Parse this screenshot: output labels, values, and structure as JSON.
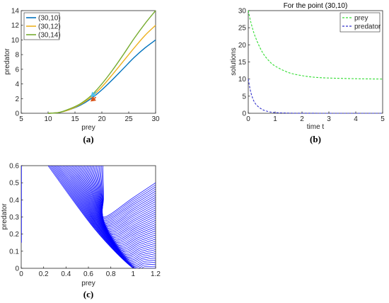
{
  "chart_data": [
    {
      "panel": "a",
      "caption": "(a)",
      "type": "line",
      "xlabel": "prey",
      "ylabel": "predator",
      "xlim": [
        5,
        30
      ],
      "ylim": [
        0,
        14
      ],
      "xticks": [
        "5",
        "10",
        "15",
        "20",
        "25",
        "30"
      ],
      "yticks": [
        "0",
        "2",
        "4",
        "6",
        "8",
        "10",
        "12",
        "14"
      ],
      "legend_placement": "top-left",
      "series": [
        {
          "name": "(30,10)",
          "color": "#0072BD",
          "x": [
            10,
            12,
            14,
            16,
            18,
            20,
            22,
            24,
            26,
            28,
            30
          ],
          "y": [
            0.0,
            0.1,
            0.5,
            1.1,
            2.0,
            3.2,
            4.6,
            6.1,
            7.6,
            8.9,
            10.0
          ]
        },
        {
          "name": "(30,12)",
          "color": "#EDB120",
          "x": [
            10,
            12,
            14,
            16,
            18,
            20,
            22,
            24,
            26,
            28,
            30
          ],
          "y": [
            0.0,
            0.1,
            0.5,
            1.2,
            2.2,
            3.6,
            5.3,
            7.1,
            8.9,
            10.6,
            12.0
          ]
        },
        {
          "name": "(30,14)",
          "color": "#77AC30",
          "x": [
            10,
            12,
            14,
            16,
            18,
            20,
            22,
            24,
            26,
            28,
            30
          ],
          "y": [
            0.0,
            0.1,
            0.6,
            1.3,
            2.4,
            4.0,
            5.9,
            8.0,
            10.2,
            12.2,
            14.0
          ]
        }
      ],
      "arrows": [
        {
          "x0": 17.9,
          "y0": 1.6,
          "x1": 18.9,
          "y1": 2.2,
          "color": "#D95319"
        },
        {
          "x0": 17.9,
          "y0": 2.2,
          "x1": 18.9,
          "y1": 2.9,
          "color": "#4DBEEE"
        }
      ]
    },
    {
      "panel": "b",
      "caption": "(b)",
      "type": "line",
      "title": "For the point (30,10)",
      "xlabel": "time t",
      "ylabel": "solutions",
      "xlim": [
        0,
        5
      ],
      "ylim": [
        0,
        30
      ],
      "xticks": [
        "0",
        "1",
        "2",
        "3",
        "4",
        "5"
      ],
      "yticks": [
        "0",
        "5",
        "10",
        "15",
        "20",
        "25",
        "30"
      ],
      "legend_placement": "top-right",
      "series": [
        {
          "name": "prey",
          "color": "#33dd33",
          "style": "dashed",
          "x": [
            0,
            0.1,
            0.25,
            0.5,
            0.75,
            1,
            1.5,
            2,
            2.5,
            3,
            4,
            5
          ],
          "y": [
            30,
            26.5,
            22.6,
            18.2,
            15.5,
            13.8,
            11.9,
            11.0,
            10.5,
            10.3,
            10.1,
            10.0
          ]
        },
        {
          "name": "predator",
          "color": "#3333cc",
          "style": "dashed",
          "x": [
            0,
            0.1,
            0.25,
            0.5,
            0.75,
            1,
            1.5,
            2,
            3,
            4,
            5
          ],
          "y": [
            10,
            6.0,
            3.0,
            1.2,
            0.5,
            0.2,
            0.05,
            0.01,
            0,
            0,
            0
          ]
        }
      ]
    },
    {
      "panel": "c",
      "caption": "(c)",
      "type": "line",
      "xlabel": "prey",
      "ylabel": "predator",
      "xlim": [
        0,
        1.2
      ],
      "ylim": [
        0,
        0.6
      ],
      "xticks": [
        "0",
        "0.2",
        "0.4",
        "0.6",
        "0.8",
        "1",
        "1.2"
      ],
      "yticks": [
        "0",
        "0.1",
        "0.2",
        "0.3",
        "0.4",
        "0.5",
        "0.6"
      ],
      "color": "#0000ff",
      "family": {
        "start_x_range": [
          0.24,
          0.73
        ],
        "end_y_range": [
          0.0,
          0.5
        ],
        "count": 42,
        "vertical_segment": {
          "x": 0.0,
          "y": [
            0.15,
            0.6
          ]
        }
      }
    }
  ]
}
